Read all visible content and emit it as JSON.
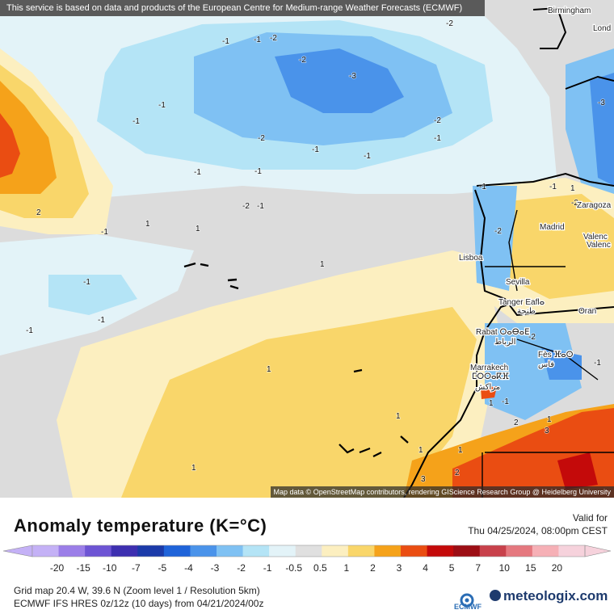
{
  "map": {
    "banner": "This service is based on data and products of the European Centre for Medium-range Weather Forecasts (ECMWF)",
    "attribution": "Map data © OpenStreetMap contributors, rendering GIScience Research Group @ Heidelberg University",
    "cities": [
      "Birmingham",
      "Lond",
      "Zaragoza",
      "Madrid",
      "Valenc",
      "Valenc",
      "Lisboa",
      "Sevilla",
      "Tanger Eaflⴰ",
      "طنجة",
      "Oran",
      "Rabat ⵔⴰⴱⴰⴹ",
      "الرباط",
      "Fès ⴼⴰⵙ",
      "فاس",
      "Marrakech",
      "ⵎⵔⵔⴰⴽⴼ",
      "مراكش"
    ],
    "contour_labels": [
      "-2",
      "-1",
      "-2",
      "-1",
      "-3",
      "-2",
      "-1",
      "-1",
      "-2",
      "-2",
      "-1",
      "-1",
      "-1",
      "-1",
      "-3",
      "-2",
      "-1",
      "-1",
      "2",
      "1",
      "-2",
      "-1",
      "-1",
      "-1",
      "-1",
      "-1",
      "-2",
      "-1",
      "-2",
      "1",
      "1",
      "1",
      "1",
      "1",
      "1",
      "2",
      "1",
      "3",
      "3",
      "2",
      "1",
      "-1",
      "1",
      "1",
      "-1"
    ]
  },
  "legend": {
    "title": "Anomaly temperature (K=°C)",
    "valid_label": "Valid for",
    "valid_date": "Thu 04/25/2024, 08:00pm CEST",
    "ticks": [
      "-20",
      "-15",
      "-10",
      "-7",
      "-5",
      "-4",
      "-3",
      "-2",
      "-1",
      "-0.5",
      "0.5",
      "1",
      "2",
      "3",
      "4",
      "5",
      "7",
      "10",
      "15",
      "20"
    ],
    "colors": [
      "#c4b1f6",
      "#9b7ee8",
      "#6d54d4",
      "#3d2fb0",
      "#1b3aa9",
      "#1f63d9",
      "#4a93ea",
      "#7fc1f3",
      "#b4e4f6",
      "#e3f3f8",
      "#e0e0e0",
      "#fcefc0",
      "#f9d66a",
      "#f5a21a",
      "#ea4d12",
      "#c40a0a",
      "#9c0e15",
      "#c8414b",
      "#e5787f",
      "#f6b0b6",
      "#f6d2dc"
    ],
    "info_line1": "Grid map 20.4 W, 39.6 N (Zoom level 1 / Resolution 5km)",
    "info_line2": "ECMWF IFS HRES 0z/12z (10 days) from  04/21/2024/00z",
    "ecmwf_logo": "ECMWF",
    "brand": "meteologix.com"
  }
}
